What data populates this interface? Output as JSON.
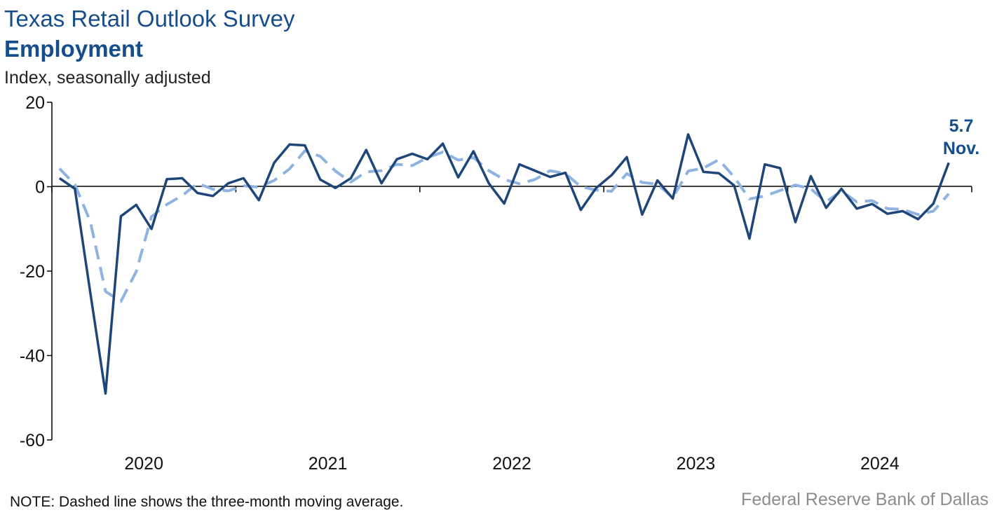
{
  "header": {
    "title": "Texas Retail Outlook Survey",
    "subtitle_bold": "Employment",
    "units": "Index, seasonally adjusted"
  },
  "footer": {
    "note": "NOTE: Dashed line shows the three-month moving average.",
    "source": "Federal Reserve Bank of Dallas"
  },
  "callout": {
    "value": "5.7",
    "month": "Nov."
  },
  "colors": {
    "index": "#1f4678",
    "moving_average": "#8fb3e0",
    "text": "#164d8c",
    "source": "#8c8c8c"
  },
  "chart_data": {
    "type": "line",
    "title": "Employment",
    "ylabel": "Index, seasonally adjusted",
    "ylim": [
      -60,
      20
    ],
    "yticks": [
      20,
      0,
      -20,
      -40,
      -60
    ],
    "x_start": "2020-01",
    "x_end": "2024-11",
    "year_labels": [
      "2020",
      "2021",
      "2022",
      "2023",
      "2024"
    ],
    "grid": false,
    "series": [
      {
        "style": "solid",
        "values": [
          2.0,
          -0.5,
          -25.0,
          -49.0,
          -7.0,
          -4.3,
          -10.0,
          1.8,
          2.0,
          -1.5,
          -2.2,
          0.8,
          2.0,
          -3.2,
          5.7,
          10.0,
          9.8,
          1.7,
          -0.3,
          2.0,
          8.7,
          0.8,
          6.5,
          7.8,
          6.5,
          10.2,
          2.2,
          8.4,
          0.8,
          -4.0,
          5.3,
          3.8,
          2.3,
          3.3,
          -5.5,
          -0.3,
          2.7,
          7.0,
          -6.6,
          1.5,
          -2.8,
          12.4,
          3.5,
          3.2,
          0.3,
          -12.3,
          5.3,
          4.4,
          -8.4,
          2.5,
          -5.0,
          -0.5,
          -5.2,
          -4.1,
          -6.4,
          -5.8,
          -7.7,
          -4.0,
          5.7
        ]
      },
      {
        "style": "dashed",
        "values": [
          4.3,
          0.5,
          -8.2,
          -24.8,
          -27.2,
          -20.1,
          -7.1,
          -4.2,
          -2.1,
          0.8,
          -0.6,
          -1.0,
          0.2,
          -0.1,
          1.5,
          4.2,
          8.5,
          7.2,
          3.7,
          1.1,
          3.5,
          3.8,
          5.3,
          5.0,
          6.9,
          8.2,
          6.3,
          6.9,
          3.8,
          1.7,
          0.7,
          1.7,
          3.8,
          3.1,
          0.0,
          -0.8,
          -1.1,
          3.1,
          1.0,
          0.6,
          -2.6,
          3.7,
          4.4,
          6.4,
          2.3,
          -2.9,
          -2.2,
          -0.9,
          0.4,
          -0.5,
          -3.6,
          -1.0,
          -3.6,
          -3.3,
          -5.2,
          -5.4,
          -6.6,
          -5.8,
          -1.7
        ]
      }
    ]
  }
}
